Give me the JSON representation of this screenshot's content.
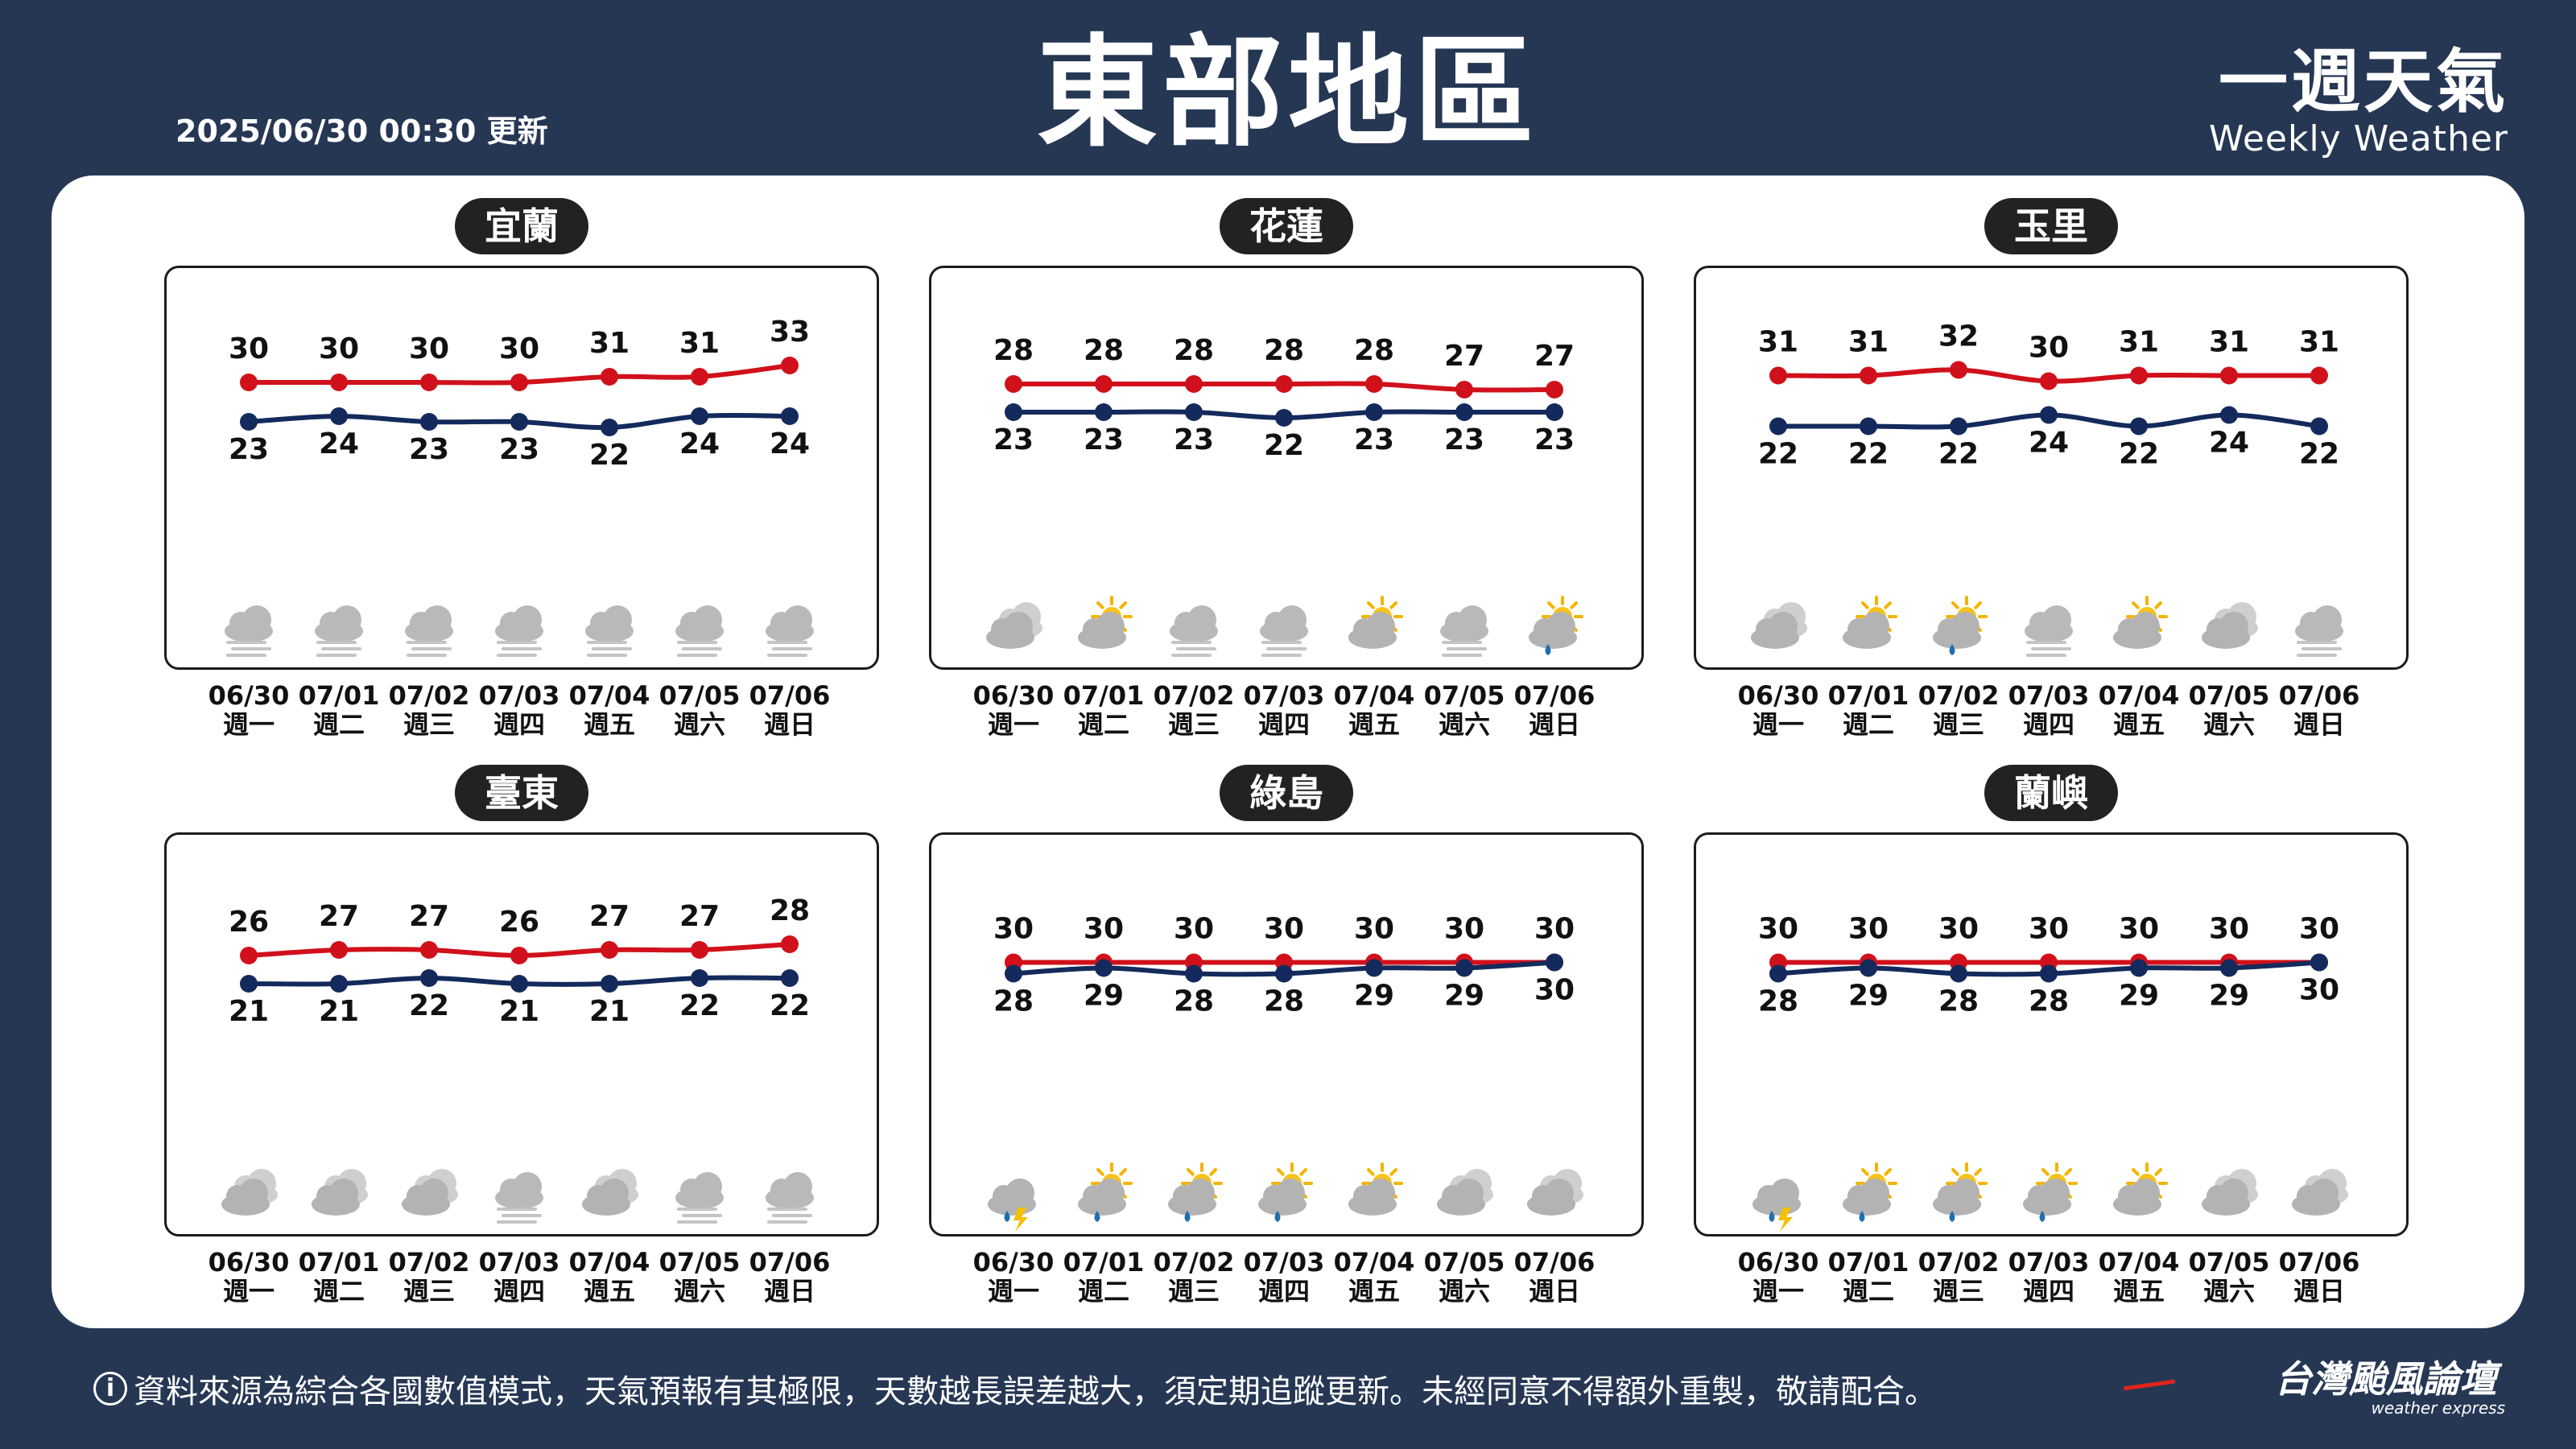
{
  "header": {
    "title": "東部地區",
    "update_time": "2025/06/30 00:30 更新",
    "brand_zh": "一週天氣",
    "brand_en": "Weekly Weather"
  },
  "colors": {
    "high": "#d0111b",
    "low": "#142a5c",
    "background": "#263754"
  },
  "days": [
    {
      "date": "06/30",
      "weekday": "週一"
    },
    {
      "date": "07/01",
      "weekday": "週二"
    },
    {
      "date": "07/02",
      "weekday": "週三"
    },
    {
      "date": "07/03",
      "weekday": "週四"
    },
    {
      "date": "07/04",
      "weekday": "週五"
    },
    {
      "date": "07/05",
      "weekday": "週六"
    },
    {
      "date": "07/06",
      "weekday": "週日"
    }
  ],
  "chart_data": [
    {
      "type": "line",
      "city": "宜蘭",
      "x": [
        "06/30",
        "07/01",
        "07/02",
        "07/03",
        "07/04",
        "07/05",
        "07/06"
      ],
      "series": [
        {
          "values": [
            30,
            30,
            30,
            30,
            31,
            31,
            33
          ]
        },
        {
          "values": [
            23,
            24,
            23,
            23,
            22,
            24,
            24
          ]
        }
      ],
      "icons": [
        "fog",
        "fog",
        "fog",
        "fog",
        "fog",
        "fog",
        "fog"
      ]
    },
    {
      "type": "line",
      "city": "花蓮",
      "x": [
        "06/30",
        "07/01",
        "07/02",
        "07/03",
        "07/04",
        "07/05",
        "07/06"
      ],
      "series": [
        {
          "values": [
            28,
            28,
            28,
            28,
            28,
            27,
            27
          ]
        },
        {
          "values": [
            23,
            23,
            23,
            22,
            23,
            23,
            23
          ]
        }
      ],
      "icons": [
        "cloudy",
        "partly-cloudy",
        "fog",
        "fog",
        "partly-cloudy",
        "fog",
        "partly-cloudy-rain"
      ]
    },
    {
      "type": "line",
      "city": "玉里",
      "x": [
        "06/30",
        "07/01",
        "07/02",
        "07/03",
        "07/04",
        "07/05",
        "07/06"
      ],
      "series": [
        {
          "values": [
            31,
            31,
            32,
            30,
            31,
            31,
            31
          ]
        },
        {
          "values": [
            22,
            22,
            22,
            24,
            22,
            24,
            22
          ]
        }
      ],
      "icons": [
        "cloudy",
        "partly-cloudy",
        "partly-cloudy-rain",
        "fog",
        "partly-cloudy",
        "cloudy",
        "fog"
      ]
    },
    {
      "type": "line",
      "city": "臺東",
      "x": [
        "06/30",
        "07/01",
        "07/02",
        "07/03",
        "07/04",
        "07/05",
        "07/06"
      ],
      "series": [
        {
          "values": [
            26,
            27,
            27,
            26,
            27,
            27,
            28
          ]
        },
        {
          "values": [
            21,
            21,
            22,
            21,
            21,
            22,
            22
          ]
        }
      ],
      "icons": [
        "cloudy",
        "cloudy",
        "cloudy",
        "fog",
        "cloudy",
        "fog",
        "fog"
      ]
    },
    {
      "type": "line",
      "city": "綠島",
      "x": [
        "06/30",
        "07/01",
        "07/02",
        "07/03",
        "07/04",
        "07/05",
        "07/06"
      ],
      "series": [
        {
          "values": [
            30,
            30,
            30,
            30,
            30,
            30,
            30
          ]
        },
        {
          "values": [
            28,
            29,
            28,
            28,
            29,
            29,
            30
          ]
        }
      ],
      "icons": [
        "thunder-rain",
        "partly-cloudy-rain",
        "partly-cloudy-rain",
        "partly-cloudy-rain",
        "partly-cloudy",
        "cloudy",
        "cloudy"
      ]
    },
    {
      "type": "line",
      "city": "蘭嶼",
      "x": [
        "06/30",
        "07/01",
        "07/02",
        "07/03",
        "07/04",
        "07/05",
        "07/06"
      ],
      "series": [
        {
          "values": [
            30,
            30,
            30,
            30,
            30,
            30,
            30
          ]
        },
        {
          "values": [
            28,
            29,
            28,
            28,
            29,
            29,
            30
          ]
        }
      ],
      "icons": [
        "thunder-rain",
        "partly-cloudy-rain",
        "partly-cloudy-rain",
        "partly-cloudy-rain",
        "partly-cloudy",
        "cloudy",
        "cloudy"
      ]
    }
  ],
  "footer": {
    "info_icon": "i",
    "note": "資料來源為綜合各國數值模式，天氣預報有其極限，天數越長誤差越大，須定期追蹤更新。未經同意不得額外重製，敬請配合。",
    "logo_zh": "台灣颱風論壇",
    "logo_en": "weather express"
  }
}
